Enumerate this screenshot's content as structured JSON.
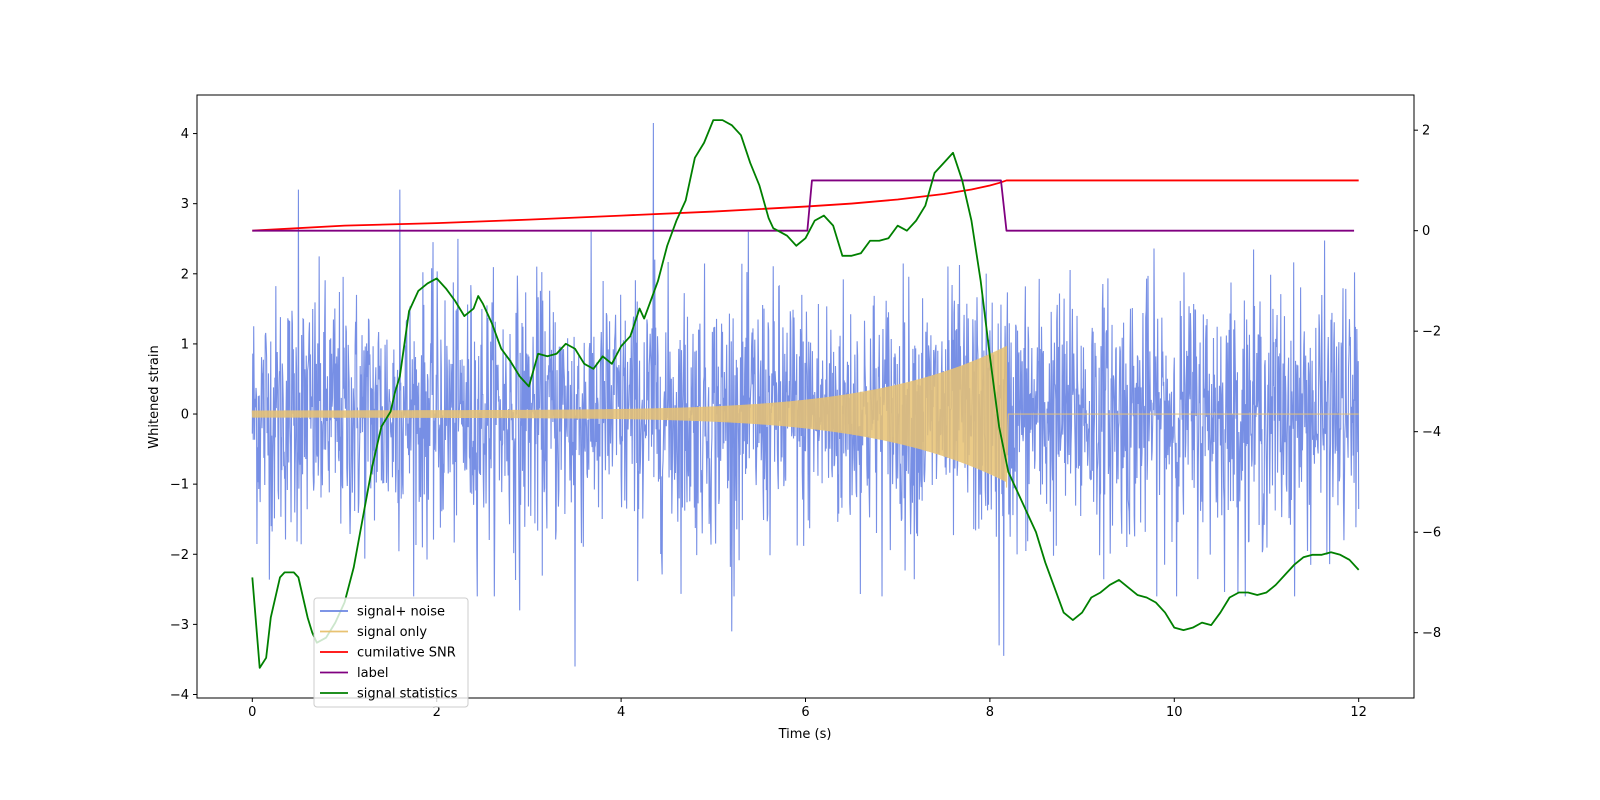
{
  "chart_data": {
    "type": "line",
    "title": "",
    "xlabel": "Time (s)",
    "ylabel": "Whitened strain",
    "y2label": "",
    "xlim": [
      -0.6,
      12.6
    ],
    "ylim": [
      -4.05,
      4.55
    ],
    "y2lim": [
      -9.3,
      2.7
    ],
    "x_ticks": [
      0,
      2,
      4,
      6,
      8,
      10,
      12
    ],
    "x_tick_labels": [
      "0",
      "2",
      "4",
      "6",
      "8",
      "10",
      "12"
    ],
    "y_ticks": [
      -4,
      -3,
      -2,
      -1,
      0,
      1,
      2,
      3,
      4
    ],
    "y_tick_labels": [
      "−4",
      "−3",
      "−2",
      "−1",
      "0",
      "1",
      "2",
      "3",
      "4"
    ],
    "y2_ticks": [
      -8,
      -6,
      -4,
      -2,
      0,
      2
    ],
    "y2_tick_labels": [
      "−8",
      "−6",
      "−4",
      "−2",
      "0",
      "2"
    ],
    "grid": false,
    "legend_position": "lower-left",
    "series": [
      {
        "name": "signal+ noise",
        "axis": "left",
        "color": "#6b86e3",
        "kind": "noise",
        "t_start": 0,
        "t_end": 12,
        "sigma": 0.9,
        "spikes": [
          [
            0.5,
            3.2
          ],
          [
            1.6,
            3.2
          ],
          [
            4.35,
            4.15
          ],
          [
            3.5,
            -3.6
          ],
          [
            8.1,
            -3.3
          ],
          [
            8.15,
            -3.45
          ],
          [
            2.9,
            -2.8
          ],
          [
            5.2,
            -3.1
          ]
        ]
      },
      {
        "name": "signal only",
        "axis": "left",
        "color": "#e8c272",
        "kind": "chirp",
        "t_start": 0,
        "t_merge": 8.18,
        "t_end": 12,
        "amp_start": 0.05,
        "amp_merge": 0.95,
        "amp_drop": -1.05
      },
      {
        "name": "cumilative SNR",
        "axis": "right",
        "color": "#ff0000",
        "kind": "line",
        "x": [
          0,
          1,
          2,
          3,
          4,
          5,
          6,
          6.5,
          7,
          7.5,
          7.8,
          8.0,
          8.1,
          8.18,
          12
        ],
        "y": [
          0.0,
          0.1,
          0.15,
          0.22,
          0.3,
          0.38,
          0.48,
          0.54,
          0.62,
          0.73,
          0.82,
          0.9,
          0.95,
          1.0,
          1.0
        ]
      },
      {
        "name": "label",
        "axis": "right",
        "color": "#800080",
        "kind": "line",
        "x": [
          0,
          6.02,
          6.07,
          8.12,
          8.18,
          11.95
        ],
        "y": [
          0,
          0,
          1,
          1,
          0,
          0
        ]
      },
      {
        "name": "signal statistics",
        "axis": "right",
        "color": "#008000",
        "kind": "line",
        "x": [
          0.0,
          0.08,
          0.15,
          0.2,
          0.3,
          0.35,
          0.45,
          0.5,
          0.55,
          0.6,
          0.65,
          0.7,
          0.8,
          0.9,
          1.0,
          1.1,
          1.2,
          1.3,
          1.4,
          1.5,
          1.55,
          1.6,
          1.7,
          1.8,
          1.9,
          2.0,
          2.1,
          2.2,
          2.3,
          2.4,
          2.45,
          2.5,
          2.6,
          2.7,
          2.8,
          2.9,
          3.0,
          3.1,
          3.2,
          3.3,
          3.4,
          3.5,
          3.6,
          3.7,
          3.8,
          3.9,
          4.0,
          4.1,
          4.2,
          4.25,
          4.3,
          4.4,
          4.5,
          4.6,
          4.7,
          4.8,
          4.9,
          5.0,
          5.1,
          5.2,
          5.3,
          5.4,
          5.5,
          5.6,
          5.65,
          5.7,
          5.8,
          5.9,
          6.0,
          6.1,
          6.2,
          6.3,
          6.4,
          6.5,
          6.6,
          6.7,
          6.8,
          6.9,
          7.0,
          7.1,
          7.2,
          7.3,
          7.4,
          7.5,
          7.6,
          7.7,
          7.8,
          7.9,
          8.0,
          8.1,
          8.2,
          8.3,
          8.4,
          8.5,
          8.6,
          8.7,
          8.8,
          8.9,
          9.0,
          9.1,
          9.2,
          9.3,
          9.4,
          9.5,
          9.6,
          9.7,
          9.8,
          9.9,
          10.0,
          10.1,
          10.2,
          10.3,
          10.4,
          10.5,
          10.6,
          10.7,
          10.8,
          10.9,
          11.0,
          11.1,
          11.2,
          11.3,
          11.4,
          11.5,
          11.6,
          11.7,
          11.8,
          11.9,
          12.0
        ],
        "y": [
          -6.9,
          -8.7,
          -8.5,
          -7.7,
          -6.9,
          -6.8,
          -6.8,
          -6.9,
          -7.3,
          -7.7,
          -8.0,
          -8.2,
          -8.1,
          -7.8,
          -7.4,
          -6.7,
          -5.7,
          -4.7,
          -3.9,
          -3.6,
          -3.2,
          -2.9,
          -1.6,
          -1.2,
          -1.05,
          -0.95,
          -1.15,
          -1.4,
          -1.7,
          -1.55,
          -1.3,
          -1.45,
          -1.85,
          -2.35,
          -2.6,
          -2.9,
          -3.1,
          -2.45,
          -2.5,
          -2.45,
          -2.25,
          -2.35,
          -2.65,
          -2.75,
          -2.5,
          -2.65,
          -2.3,
          -2.1,
          -1.55,
          -1.75,
          -1.5,
          -1.0,
          -0.3,
          0.2,
          0.6,
          1.45,
          1.75,
          2.2,
          2.2,
          2.1,
          1.9,
          1.35,
          0.9,
          0.25,
          0.05,
          0.0,
          -0.1,
          -0.3,
          -0.15,
          0.2,
          0.3,
          0.1,
          -0.5,
          -0.5,
          -0.45,
          -0.2,
          -0.2,
          -0.15,
          0.1,
          0.0,
          0.2,
          0.5,
          1.15,
          1.35,
          1.55,
          1.0,
          0.2,
          -1.0,
          -2.5,
          -3.9,
          -4.8,
          -5.2,
          -5.6,
          -6.0,
          -6.6,
          -7.1,
          -7.6,
          -7.75,
          -7.6,
          -7.3,
          -7.2,
          -7.05,
          -6.95,
          -7.1,
          -7.25,
          -7.3,
          -7.4,
          -7.6,
          -7.9,
          -7.95,
          -7.9,
          -7.8,
          -7.85,
          -7.6,
          -7.3,
          -7.2,
          -7.2,
          -7.25,
          -7.2,
          -7.05,
          -6.85,
          -6.65,
          -6.5,
          -6.45,
          -6.45,
          -6.4,
          -6.45,
          -6.55,
          -6.75
        ]
      }
    ]
  }
}
